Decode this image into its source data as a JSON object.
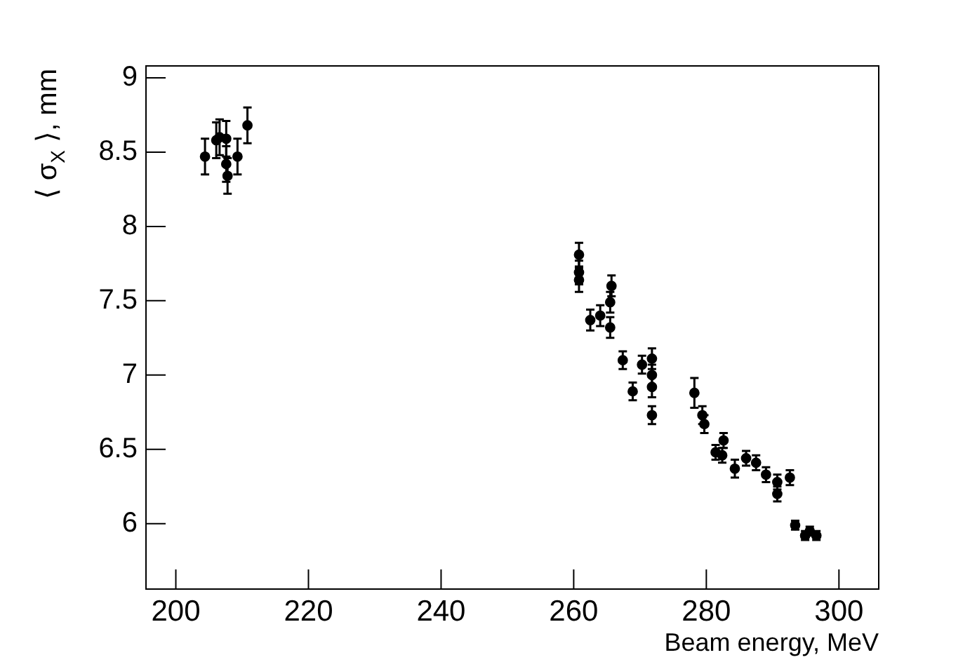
{
  "chart_data": {
    "type": "scatter",
    "xlabel": "Beam energy, MeV",
    "ylabel": "⟨ σ$_{X}$ ⟩, mm",
    "xlim": [
      195.5,
      306
    ],
    "xticks": [
      200,
      220,
      240,
      260,
      280,
      300
    ],
    "ylim": [
      5.56,
      9.08
    ],
    "yticks": [
      6,
      6.5,
      7,
      7.5,
      8,
      8.5,
      9
    ],
    "grid": false,
    "legend": false,
    "marker": "circle",
    "series": [
      {
        "color": "#000000",
        "x": [
          204.4,
          206.1,
          206.6,
          207.6,
          207.6,
          207.8,
          209.3,
          210.8,
          260.8,
          260.8,
          260.8,
          262.5,
          264.0,
          265.5,
          265.7,
          265.5,
          267.4,
          268.9,
          270.3,
          271.8,
          271.8,
          271.8,
          271.8,
          278.2,
          279.4,
          279.7,
          281.4,
          282.4,
          282.6,
          284.3,
          286.0,
          287.5,
          289.0,
          290.7,
          290.7,
          292.6,
          293.4,
          294.9,
          295.6,
          296.6
        ],
        "values": [
          8.47,
          8.58,
          8.6,
          8.59,
          8.42,
          8.34,
          8.47,
          8.68,
          7.81,
          7.69,
          7.64,
          7.37,
          7.4,
          7.49,
          7.6,
          7.32,
          7.1,
          6.89,
          7.07,
          7.11,
          7.0,
          6.92,
          6.73,
          6.88,
          6.73,
          6.67,
          6.48,
          6.46,
          6.56,
          6.37,
          6.44,
          6.41,
          6.33,
          6.2,
          6.28,
          6.31,
          5.99,
          5.92,
          5.95,
          5.92
        ],
        "errors": [
          0.12,
          0.12,
          0.12,
          0.12,
          0.12,
          0.12,
          0.12,
          0.12,
          0.08,
          0.08,
          0.08,
          0.07,
          0.07,
          0.07,
          0.07,
          0.07,
          0.06,
          0.06,
          0.06,
          0.07,
          0.07,
          0.07,
          0.06,
          0.1,
          0.06,
          0.06,
          0.05,
          0.05,
          0.05,
          0.06,
          0.05,
          0.05,
          0.05,
          0.05,
          0.05,
          0.05,
          0.03,
          0.03,
          0.03,
          0.03
        ]
      }
    ]
  }
}
